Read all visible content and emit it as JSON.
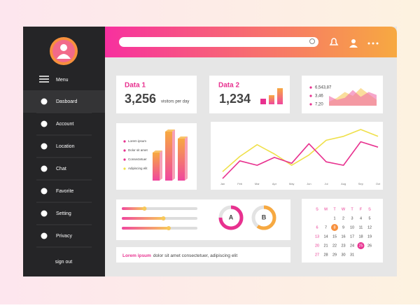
{
  "sidebar": {
    "menu": "Menu",
    "items": [
      "Dasboard",
      "Account",
      "Location",
      "Chat",
      "Favorite",
      "Setting",
      "Privacy"
    ],
    "sign_out": "sign out"
  },
  "data1": {
    "title": "Data 1",
    "value": "3,256",
    "caption": "visitors per day"
  },
  "data2": {
    "title": "Data 2",
    "value": "1,234",
    "bars": [
      8,
      13,
      23
    ]
  },
  "mini": {
    "labels": [
      "6,543,87",
      "3,46",
      "7,20"
    ],
    "series": [
      {
        "color": "#f7c85a",
        "values": [
          4,
          8,
          14,
          10,
          18,
          12,
          6
        ]
      },
      {
        "color": "#f06aa8",
        "values": [
          10,
          6,
          8,
          16,
          9,
          14,
          11
        ]
      }
    ]
  },
  "bars3d": {
    "legend": [
      "Lorem ipsum",
      "Dolor sit amet",
      "Consectetuer",
      "Adipiscing elit"
    ],
    "values": [
      40,
      70,
      60
    ]
  },
  "line": {
    "x": [
      "Jan",
      "Feb",
      "Mar",
      "Apr",
      "May",
      "Jun",
      "Jul",
      "Aug",
      "Sep",
      "Oct"
    ],
    "ylim": [
      0,
      100
    ],
    "series": [
      {
        "color": "#efe04a",
        "values": [
          14,
          45,
          69,
          50,
          27,
          48,
          78,
          86,
          100,
          86
        ]
      },
      {
        "color": "#e8318f",
        "values": [
          0,
          36,
          27,
          43,
          31,
          71,
          34,
          27,
          75,
          64
        ]
      }
    ]
  },
  "sliders": [
    30,
    55,
    62
  ],
  "donuts": [
    {
      "label": "A",
      "value": 75
    },
    {
      "label": "B",
      "value": 60
    }
  ],
  "calendar": {
    "weekdays": [
      "S",
      "M",
      "T",
      "W",
      "T",
      "F",
      "S"
    ],
    "first_weekday": 2,
    "days": [
      1,
      2,
      3,
      4,
      5,
      6,
      7,
      8,
      9,
      10,
      11,
      12,
      13,
      14,
      15,
      16,
      17,
      18,
      19,
      20,
      21,
      22,
      23,
      24,
      25,
      26,
      27,
      28,
      29,
      30,
      31
    ],
    "highlight": [
      8,
      25
    ]
  },
  "footer": {
    "highlight": "Lorem ipsum",
    "text": "dolor sit amet consectetuer, adipiscing elit"
  }
}
